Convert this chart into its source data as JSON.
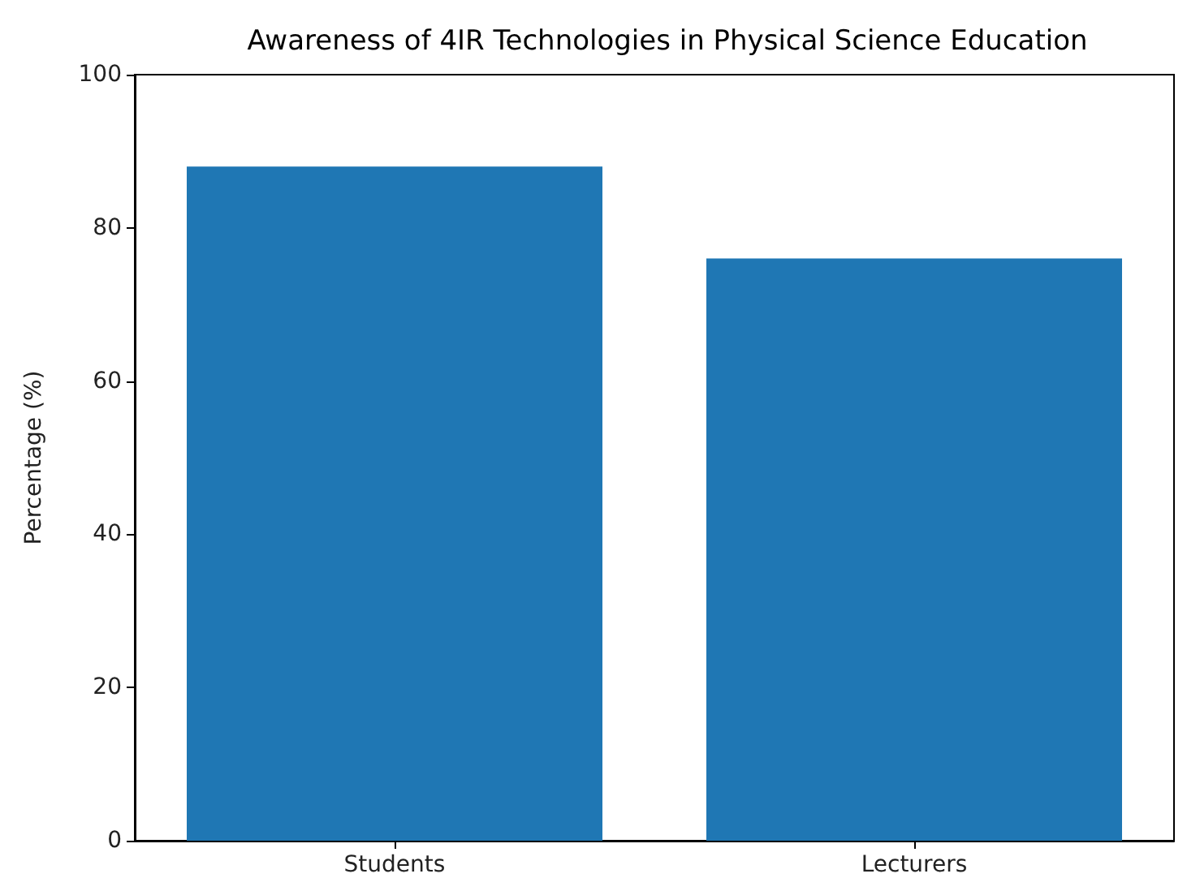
{
  "chart_data": {
    "type": "bar",
    "title": "Awareness of 4IR Technologies in Physical Science Education",
    "ylabel": "Percentage (%)",
    "categories": [
      "Students",
      "Lecturers"
    ],
    "values": [
      88,
      76
    ],
    "color": "#1f77b4",
    "ylim": [
      0,
      100
    ],
    "yticks": [
      0,
      20,
      40,
      60,
      80,
      100
    ],
    "grid": false
  }
}
